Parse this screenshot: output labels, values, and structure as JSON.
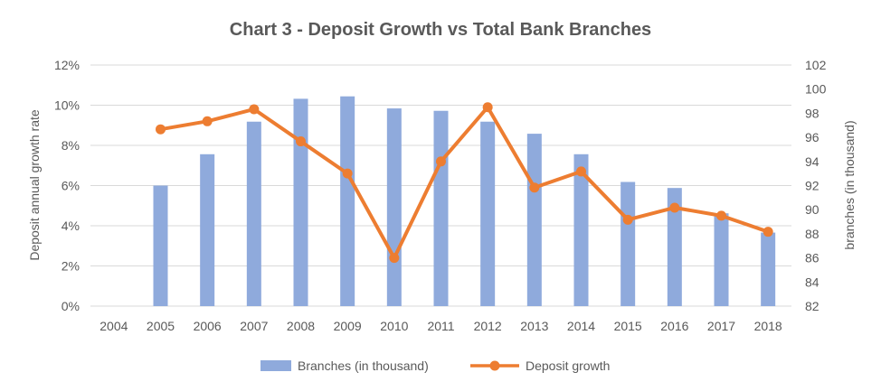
{
  "chart_data": {
    "type": "bar",
    "title": "Chart 3 - Deposit Growth vs Total Bank Branches",
    "categories": [
      "2004",
      "2005",
      "2006",
      "2007",
      "2008",
      "2009",
      "2010",
      "2011",
      "2012",
      "2013",
      "2014",
      "2015",
      "2016",
      "2017",
      "2018"
    ],
    "series": [
      {
        "name": "Branches (in thousand)",
        "type": "bar",
        "axis": "right",
        "color": "#8faadc",
        "values": [
          null,
          92.0,
          94.6,
          97.3,
          99.2,
          99.4,
          98.4,
          98.2,
          97.3,
          96.3,
          94.6,
          92.3,
          91.8,
          89.7,
          88.1
        ]
      },
      {
        "name": "Deposit growth",
        "type": "line",
        "axis": "left",
        "color": "#ed7d31",
        "values": [
          null,
          8.8,
          9.2,
          9.8,
          8.2,
          6.6,
          2.4,
          7.2,
          9.9,
          5.9,
          6.7,
          4.3,
          4.9,
          4.5,
          3.7
        ]
      }
    ],
    "yleft": {
      "label": "Deposit annual growth rate",
      "ticks": [
        "0%",
        "2%",
        "4%",
        "6%",
        "8%",
        "10%",
        "12%"
      ],
      "min": 0,
      "max": 12
    },
    "yright": {
      "label": "branches (in thousand)",
      "ticks": [
        "82",
        "84",
        "86",
        "88",
        "90",
        "92",
        "94",
        "96",
        "98",
        "100",
        "102"
      ],
      "min": 82,
      "max": 102
    },
    "grid": true,
    "legend_position": "bottom"
  }
}
